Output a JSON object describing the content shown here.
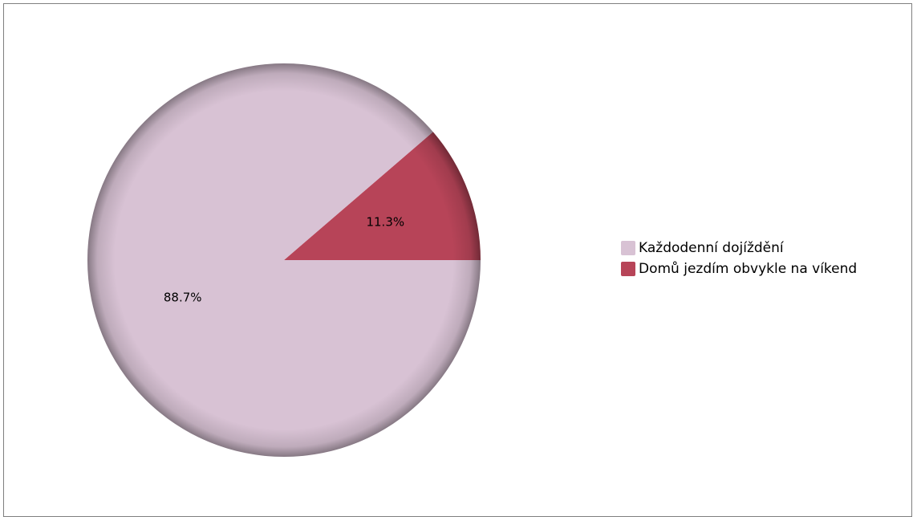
{
  "chart_data": {
    "type": "pie",
    "title": "",
    "categories": [
      "Každodenní dojíždění",
      "Domů jezdím obvykle na víkend"
    ],
    "values": [
      88.7,
      11.3
    ],
    "labels": [
      "88.7%",
      "11.3%"
    ],
    "colors": [
      "#d8c2d4",
      "#b74458"
    ],
    "legend_position": "right",
    "start_angle_deg": 0,
    "direction": "counterclockwise"
  }
}
